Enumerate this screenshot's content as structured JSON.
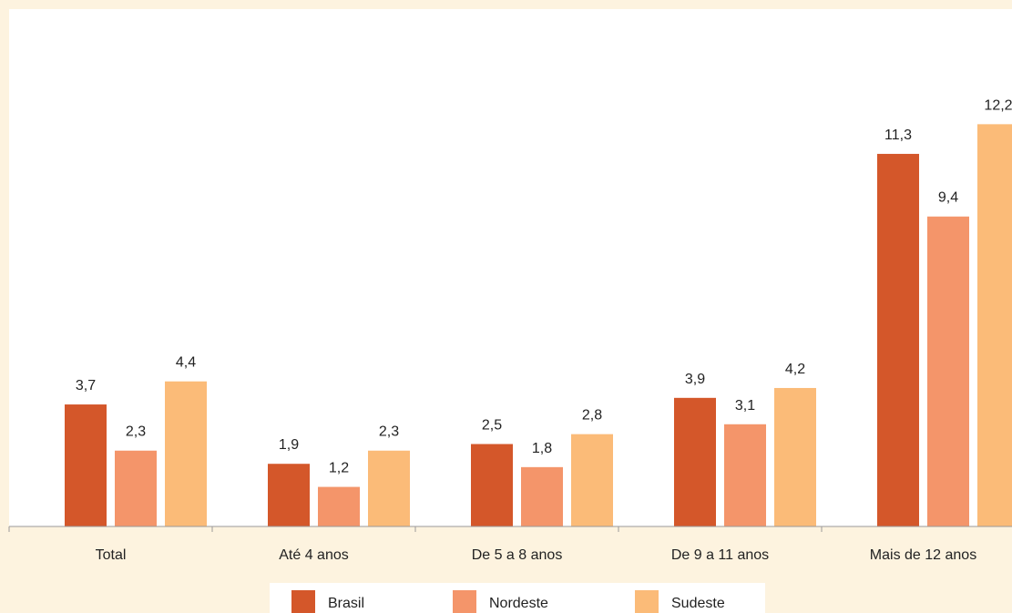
{
  "chart_data": {
    "type": "bar",
    "title": "",
    "xlabel": "",
    "ylabel": "",
    "categories": [
      "Total",
      "Até 4 anos",
      "De 5 a 8 anos",
      "De 9 a 11 anos",
      "Mais de 12 anos"
    ],
    "series": [
      {
        "name": "Brasil",
        "values": [
          3.7,
          1.9,
          2.5,
          3.9,
          11.3
        ],
        "labels": [
          "3,7",
          "1,9",
          "2,5",
          "3,9",
          "11,3"
        ],
        "color": "#d4572a"
      },
      {
        "name": "Nordeste",
        "values": [
          2.3,
          1.2,
          1.8,
          3.1,
          9.4
        ],
        "labels": [
          "2,3",
          "1,2",
          "1,8",
          "3,1",
          "9,4"
        ],
        "color": "#f4956a"
      },
      {
        "name": "Sudeste",
        "values": [
          4.4,
          2.3,
          2.8,
          4.2,
          12.2
        ],
        "labels": [
          "4,4",
          "2,3",
          "2,8",
          "4,2",
          "12,2"
        ],
        "color": "#fbbb78"
      }
    ],
    "ylim": [
      0,
      15
    ],
    "grid": false,
    "legend_position": "bottom-center",
    "colors": {
      "page_background": "#fdf3df",
      "plot_background": "#ffffff",
      "axis": "#9a9a9a",
      "text": "#222222"
    }
  }
}
